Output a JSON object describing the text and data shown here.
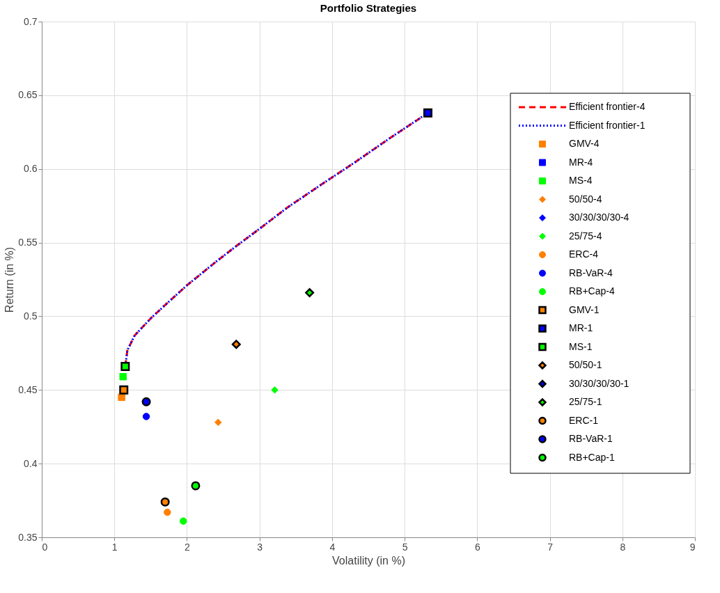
{
  "chart_data": {
    "type": "scatter",
    "title": "Portfolio Strategies",
    "xlabel": "Volatility (in %)",
    "ylabel": "Return (in %)",
    "xlim": [
      0,
      9
    ],
    "xticks": [
      0,
      1,
      2,
      3,
      4,
      5,
      6,
      7,
      8,
      9
    ],
    "ylim": [
      0.35,
      0.7
    ],
    "yticks": [
      0.35,
      0.4,
      0.45,
      0.5,
      0.55,
      0.6,
      0.65,
      0.7
    ],
    "grid": true,
    "legend": "right",
    "series": [
      {
        "name": "Efficient frontier-4",
        "type": "line",
        "line_style": "dashed",
        "color": "#ff0000",
        "x": [
          1.15,
          1.18,
          1.28,
          1.51,
          1.73,
          2.0,
          2.4,
          2.69,
          2.99,
          3.39,
          3.84,
          4.3,
          4.8,
          5.32
        ],
        "values": [
          0.466,
          0.477,
          0.487,
          0.499,
          0.509,
          0.521,
          0.537,
          0.548,
          0.559,
          0.574,
          0.589,
          0.604,
          0.621,
          0.638
        ]
      },
      {
        "name": "Efficient frontier-1",
        "type": "line",
        "line_style": "dotted",
        "color": "#0000ff",
        "x": [
          1.15,
          1.18,
          1.28,
          1.51,
          1.73,
          2.0,
          2.4,
          2.69,
          2.99,
          3.39,
          3.84,
          4.3,
          4.8,
          5.32
        ],
        "values": [
          0.466,
          0.477,
          0.487,
          0.499,
          0.509,
          0.521,
          0.537,
          0.548,
          0.559,
          0.574,
          0.589,
          0.604,
          0.621,
          0.638
        ]
      },
      {
        "name": "GMV-4",
        "marker": "square",
        "color": "#ff8000",
        "x": [
          1.1
        ],
        "values": [
          0.445
        ]
      },
      {
        "name": "MR-4",
        "marker": "square",
        "color": "#0000ff"
      },
      {
        "name": "MS-4",
        "marker": "square",
        "color": "#00ff00",
        "x": [
          1.12
        ],
        "values": [
          0.459
        ]
      },
      {
        "name": "50/50-4",
        "marker": "diamond",
        "color": "#ff8000",
        "x": [
          2.43
        ],
        "values": [
          0.428
        ]
      },
      {
        "name": "30/30/30/30-4",
        "marker": "diamond",
        "color": "#0000ff"
      },
      {
        "name": "25/75-4",
        "marker": "diamond",
        "color": "#00ff00",
        "x": [
          3.21
        ],
        "values": [
          0.45
        ]
      },
      {
        "name": "ERC-4",
        "marker": "circle",
        "color": "#ff8000",
        "x": [
          1.73
        ],
        "values": [
          0.367
        ]
      },
      {
        "name": "RB-VaR-4",
        "marker": "circle",
        "color": "#0000ff",
        "x": [
          1.44
        ],
        "values": [
          0.432
        ]
      },
      {
        "name": "RB+Cap-4",
        "marker": "circle",
        "color": "#00ff00",
        "x": [
          1.95
        ],
        "values": [
          0.361
        ]
      },
      {
        "name": "GMV-1",
        "marker": "square",
        "color": "#ff8000",
        "x": [
          1.13
        ],
        "values": [
          0.45
        ]
      },
      {
        "name": "MR-1",
        "marker": "square",
        "color": "#0000ff",
        "x": [
          5.32
        ],
        "values": [
          0.638
        ]
      },
      {
        "name": "MS-1",
        "marker": "square",
        "color": "#00ff00",
        "x": [
          1.15
        ],
        "values": [
          0.466
        ]
      },
      {
        "name": "50/50-1",
        "marker": "diamond",
        "color": "#ff8000",
        "x": [
          2.68
        ],
        "values": [
          0.481
        ]
      },
      {
        "name": "30/30/30/30-1",
        "marker": "diamond",
        "color": "#0000ff"
      },
      {
        "name": "25/75-1",
        "marker": "diamond",
        "color": "#00ff00",
        "x": [
          3.69
        ],
        "values": [
          0.516
        ]
      },
      {
        "name": "ERC-1",
        "marker": "circle",
        "color": "#ff8000",
        "x": [
          1.7
        ],
        "values": [
          0.374
        ]
      },
      {
        "name": "RB-VaR-1",
        "marker": "circle",
        "color": "#0000ff",
        "x": [
          1.44
        ],
        "values": [
          0.442
        ]
      },
      {
        "name": "RB+Cap-1",
        "marker": "circle",
        "color": "#00ff00",
        "x": [
          2.12
        ],
        "values": [
          0.385
        ]
      }
    ]
  }
}
